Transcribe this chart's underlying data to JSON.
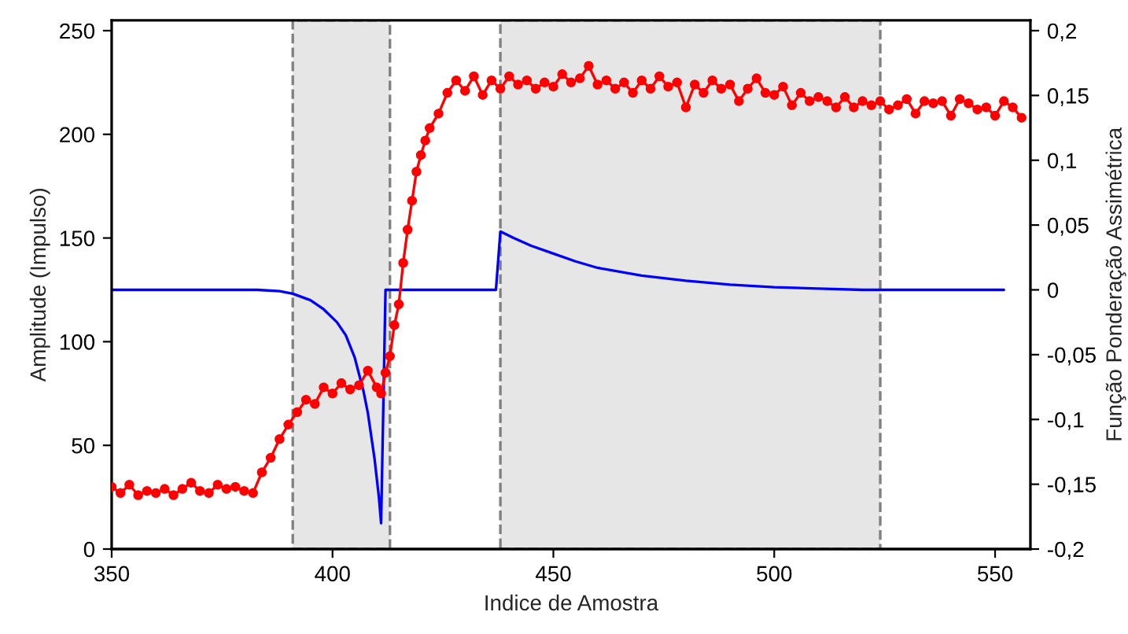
{
  "chart_data": {
    "type": "line",
    "xlabel": "Indice de Amostra",
    "ylabel": "Amplitude (Impulso)",
    "y2label": "Função Ponderação Assimétrica",
    "xlim": [
      350,
      558
    ],
    "xticks": [
      350,
      400,
      450,
      500,
      550
    ],
    "ylim": [
      0,
      255
    ],
    "yticks": [
      0,
      50,
      100,
      150,
      200,
      250
    ],
    "y2lim": [
      -0.2,
      0.208
    ],
    "y2ticks": [
      {
        "value": -0.2,
        "label": "-0,2"
      },
      {
        "value": -0.15,
        "label": "-0,15"
      },
      {
        "value": -0.1,
        "label": "-0,1"
      },
      {
        "value": -0.05,
        "label": "-0,05"
      },
      0,
      {
        "value": 0.05,
        "label": "0,05"
      },
      {
        "value": 0.1,
        "label": "0,1"
      },
      {
        "value": 0.15,
        "label": "0,15"
      },
      {
        "value": 0.2,
        "label": "0,2"
      }
    ],
    "grid": false,
    "bands": [
      {
        "axis": "x",
        "from": 391,
        "to": 413,
        "color": "#e6e6e6"
      },
      {
        "axis": "x",
        "from": 438,
        "to": 524,
        "color": "#e6e6e6"
      }
    ],
    "series": [
      {
        "color": "#ff0000",
        "marker": "circle",
        "line_style": "solid",
        "x": [
          350,
          352,
          354,
          356,
          358,
          360,
          362,
          364,
          366,
          368,
          370,
          372,
          374,
          376,
          378,
          380,
          382,
          384,
          386,
          388,
          390,
          392,
          394,
          396,
          398,
          400,
          402,
          404,
          406,
          408,
          410,
          411,
          412,
          413,
          414,
          415,
          416,
          417,
          418,
          419,
          420,
          421,
          422,
          424,
          426,
          428,
          430,
          432,
          434,
          436,
          438,
          440,
          442,
          444,
          446,
          448,
          450,
          452,
          454,
          456,
          458,
          460,
          462,
          464,
          466,
          468,
          470,
          472,
          474,
          476,
          478,
          480,
          482,
          484,
          486,
          488,
          490,
          492,
          494,
          496,
          498,
          500,
          502,
          504,
          506,
          508,
          510,
          512,
          514,
          516,
          518,
          520,
          522,
          524,
          526,
          528,
          530,
          532,
          534,
          536,
          538,
          540,
          542,
          544,
          546,
          548,
          550,
          552,
          554,
          556
        ],
        "values": [
          30,
          27,
          31,
          26,
          28,
          27,
          29,
          26,
          29,
          32,
          28,
          27,
          31,
          29,
          30,
          28,
          27,
          37,
          44,
          53,
          60,
          66,
          72,
          70,
          78,
          75,
          80,
          77,
          79,
          86,
          78,
          75,
          85,
          93,
          108,
          118,
          138,
          154,
          168,
          182,
          190,
          197,
          203,
          210,
          220,
          226,
          221,
          228,
          219,
          226,
          222,
          228,
          224,
          226,
          222,
          225,
          223,
          229,
          225,
          227,
          233,
          224,
          226,
          222,
          225,
          220,
          226,
          222,
          228,
          223,
          225,
          213,
          224,
          220,
          226,
          222,
          224,
          216,
          222,
          227,
          220,
          219,
          223,
          214,
          220,
          216,
          218,
          216,
          213,
          218,
          213,
          216,
          214,
          216,
          212,
          214,
          217,
          210,
          216,
          215,
          216,
          209,
          217,
          215,
          212,
          213,
          209,
          216,
          213,
          208
        ]
      },
      {
        "color": "#0000ff",
        "marker": "none",
        "line_style": "solid",
        "axis": "y2",
        "x": [
          350,
          383,
          388,
          391,
          395,
          398,
          401,
          403,
          405,
          407,
          408,
          409.5,
          410.5,
          411,
          412,
          437,
          438,
          441,
          445,
          450,
          455,
          460,
          470,
          480,
          490,
          500,
          510,
          520,
          552
        ],
        "values": [
          0,
          0,
          -0.001,
          -0.003,
          -0.008,
          -0.015,
          -0.025,
          -0.035,
          -0.052,
          -0.078,
          -0.095,
          -0.13,
          -0.16,
          -0.18,
          0,
          0,
          0.045,
          0.04,
          0.034,
          0.028,
          0.022,
          0.017,
          0.011,
          0.007,
          0.004,
          0.002,
          0.001,
          0,
          0
        ]
      }
    ]
  }
}
